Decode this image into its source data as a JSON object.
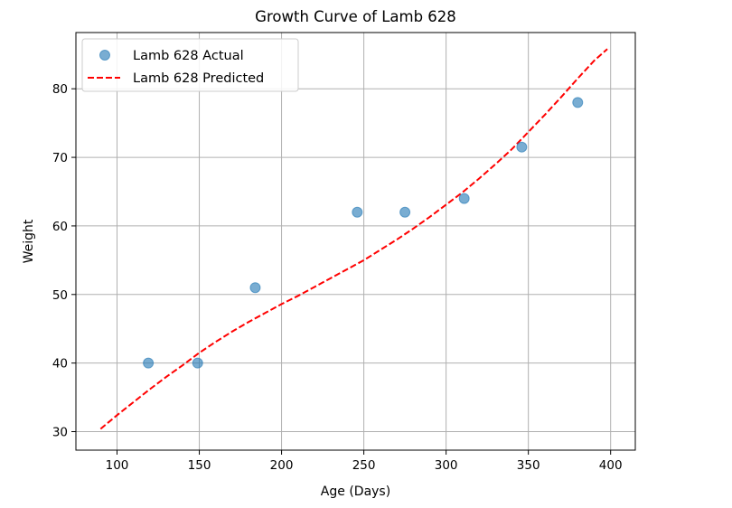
{
  "chart_data": {
    "type": "scatter",
    "title": "Growth Curve of Lamb 628",
    "xlabel": "Age (Days)",
    "ylabel": "Weight",
    "xlim": [
      75,
      415
    ],
    "ylim": [
      27.3,
      88.2
    ],
    "xticks": [
      100,
      150,
      200,
      250,
      300,
      350,
      400
    ],
    "yticks": [
      30,
      40,
      50,
      60,
      70,
      80
    ],
    "grid": true,
    "legend": {
      "placement": "top-left"
    },
    "series": [
      {
        "name": "Lamb 628 Actual",
        "kind": "scatter",
        "color": "#1f77b4",
        "points": [
          [
            119,
            40
          ],
          [
            149,
            40
          ],
          [
            184,
            51
          ],
          [
            246,
            62
          ],
          [
            275,
            62
          ],
          [
            311,
            64
          ],
          [
            346,
            71.5
          ],
          [
            380,
            78
          ]
        ]
      },
      {
        "name": "Lamb 628 Predicted",
        "kind": "line",
        "style": "dashed",
        "color": "#ff0000",
        "points": [
          [
            90,
            30.4
          ],
          [
            100,
            32.4
          ],
          [
            110,
            34.3
          ],
          [
            120,
            36.2
          ],
          [
            130,
            38.0
          ],
          [
            140,
            39.7
          ],
          [
            150,
            41.5
          ],
          [
            160,
            43.1
          ],
          [
            170,
            44.6
          ],
          [
            180,
            46.0
          ],
          [
            190,
            47.3
          ],
          [
            200,
            48.6
          ],
          [
            210,
            49.8
          ],
          [
            220,
            51.1
          ],
          [
            230,
            52.4
          ],
          [
            240,
            53.7
          ],
          [
            250,
            55.0
          ],
          [
            260,
            56.5
          ],
          [
            270,
            58.0
          ],
          [
            280,
            59.6
          ],
          [
            290,
            61.3
          ],
          [
            300,
            63.1
          ],
          [
            310,
            64.9
          ],
          [
            320,
            66.9
          ],
          [
            330,
            69.0
          ],
          [
            340,
            71.2
          ],
          [
            350,
            73.7
          ],
          [
            360,
            76.2
          ],
          [
            370,
            78.8
          ],
          [
            380,
            81.5
          ],
          [
            390,
            84.1
          ],
          [
            398,
            85.8
          ]
        ]
      }
    ]
  }
}
